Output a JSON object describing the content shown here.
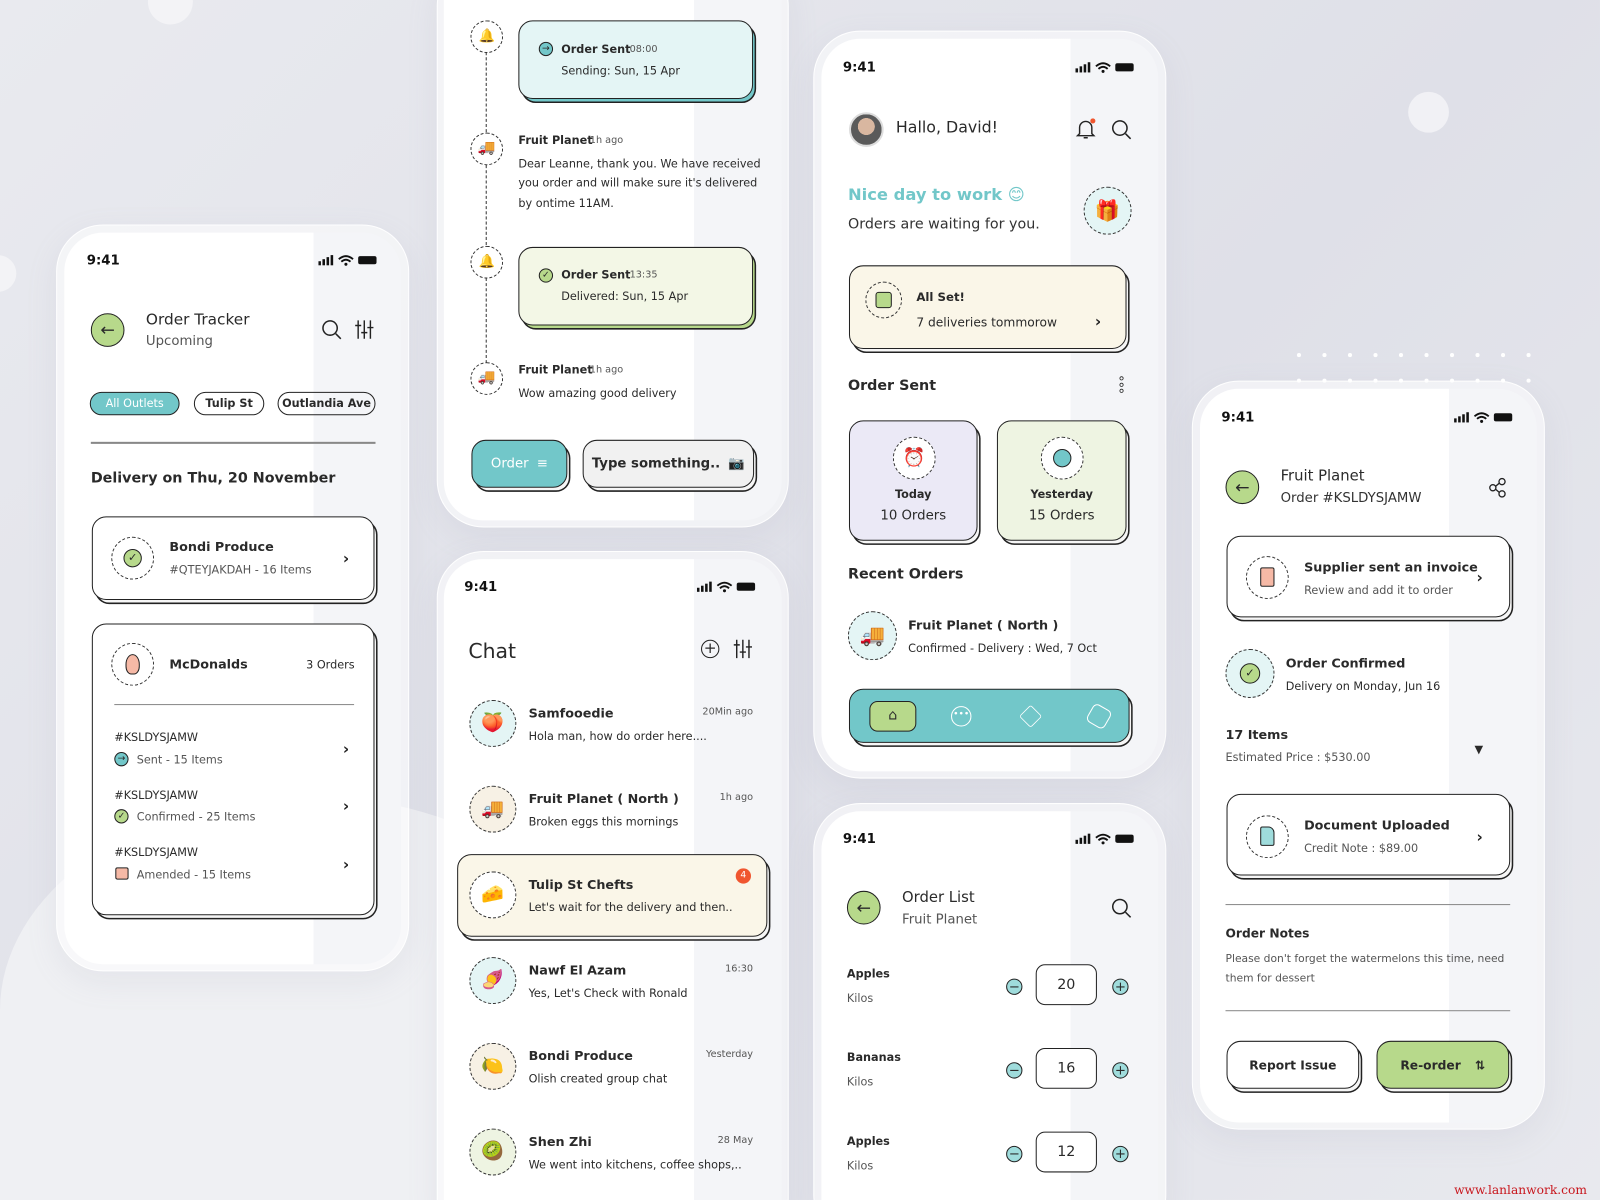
{
  "status_time": "9:41",
  "colors": {
    "teal": "#72c7c9",
    "green": "#b7d98b",
    "cream": "#faf6e8",
    "lavender": "#ebe9f6",
    "red": "#f0562f"
  },
  "tracker": {
    "title": "Order Tracker",
    "subtitle": "Upcoming",
    "chips": [
      "All Outlets",
      "Tulip St",
      "Outlandia Ave"
    ],
    "active_chip": "All Outlets",
    "section": "Delivery on Thu, 20 November",
    "bondi": {
      "name": "Bondi Produce",
      "sub": "#QTEYJAKDAH - 16 Items"
    },
    "mcd": {
      "name": "McDonalds",
      "count": "3 Orders",
      "orders": [
        {
          "id": "#KSLDYSJAMW",
          "status": "Sent - 15 Items"
        },
        {
          "id": "#KSLDYSJAMW",
          "status": "Confirmed - 25 Items"
        },
        {
          "id": "#KSLDYSJAMW",
          "status": "Amended - 15 Items"
        }
      ]
    }
  },
  "timeline": {
    "event1": {
      "title": "Order Sent",
      "time": "08:00",
      "sub": "Sending: Sun, 15 Apr"
    },
    "msg1": {
      "sender": "Fruit Planet",
      "ago": "1h ago",
      "lines": [
        "Dear Leanne, thank you. We have received",
        "you order and will make sure it's delivered",
        "by ontime 11AM."
      ]
    },
    "event2": {
      "title": "Order Sent",
      "time": "13:35",
      "sub": "Delivered: Sun, 15 Apr"
    },
    "msg2": {
      "sender": "Fruit Planet",
      "ago": "1h ago",
      "text": "Wow amazing good delivery"
    },
    "order_button": "Order",
    "input_placeholder": "Type something.."
  },
  "chat": {
    "title": "Chat",
    "items": [
      {
        "name": "Samfooedie",
        "msg": "Hola man, how do order here....",
        "time": "20Min ago"
      },
      {
        "name": "Fruit Planet ( North )",
        "msg": "Broken eggs this mornings",
        "time": "1h ago"
      },
      {
        "name": "Tulip St Chefts",
        "msg": "Let's wait for the delivery and then..",
        "badge": "4"
      },
      {
        "name": "Nawf El Azam",
        "msg": "Yes, Let's Check with Ronald",
        "time": "16:30"
      },
      {
        "name": "Bondi Produce",
        "msg": "Olish created group chat",
        "time": "Yesterday"
      },
      {
        "name": "Shen Zhi",
        "msg": "We went into kitchens, coffee shops,..",
        "time": "28 May"
      }
    ]
  },
  "home": {
    "greeting": "Hallo, David!",
    "tagline": "Nice day to work 😊",
    "subline": "Orders are waiting for you.",
    "allset": {
      "title": "All Set!",
      "sub": "7 deliveries tommorow"
    },
    "order_sent": "Order Sent",
    "today": {
      "label": "Today",
      "count": "10 Orders"
    },
    "yesterday": {
      "label": "Yesterday",
      "count": "15 Orders"
    },
    "recent": "Recent Orders",
    "recent_item": {
      "name": "Fruit Planet ( North )",
      "sub": "Confirmed - Delivery : Wed, 7 Oct"
    },
    "tabs": [
      "home",
      "chat",
      "package",
      "settings"
    ],
    "active_tab": "home"
  },
  "order_list": {
    "title": "Order List",
    "subtitle": "Fruit Planet",
    "items": [
      {
        "name": "Apples",
        "unit": "Kilos",
        "qty": "20"
      },
      {
        "name": "Bananas",
        "unit": "Kilos",
        "qty": "16"
      },
      {
        "name": "Apples",
        "unit": "Kilos",
        "qty": "12"
      }
    ]
  },
  "detail": {
    "title": "Fruit Planet",
    "order": "Order #KSLDYSJAMW",
    "invoice": {
      "title": "Supplier sent an invoice",
      "sub": "Review and add it to order"
    },
    "confirmed": {
      "title": "Order Confirmed",
      "sub": "Delivery on Monday, Jun 16"
    },
    "items": "17 Items",
    "price": "Estimated Price : $530.00",
    "doc": {
      "title": "Document Uploaded",
      "sub": "Credit Note : $89.00"
    },
    "notes_title": "Order Notes",
    "notes": [
      "Please don't forget the watermelons this time, need",
      "them for dessert"
    ],
    "report": "Report Issue",
    "reorder": "Re-order"
  },
  "watermark": "www.lanlanwork.com"
}
